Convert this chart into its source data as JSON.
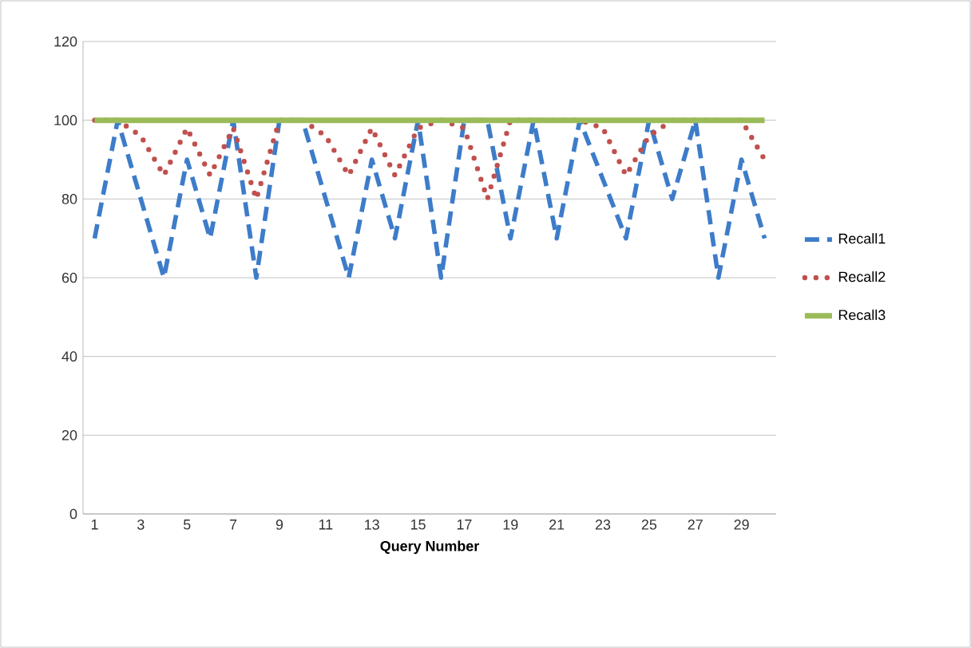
{
  "chart_data": {
    "type": "line",
    "xlabel": "**Query Number**",
    "categories": [
      "1",
      null,
      "3",
      null,
      "5",
      null,
      "7",
      null,
      "9",
      null,
      "11",
      null,
      "13",
      null,
      "15",
      null,
      "17",
      null,
      "19",
      null,
      "21",
      null,
      "23",
      null,
      "25",
      null,
      "27",
      null,
      "29",
      null
    ],
    "ylim": [
      0,
      120
    ],
    "yticks": [
      0,
      20,
      40,
      60,
      80,
      100,
      120
    ],
    "grid": "y",
    "legend": "right",
    "marker": "none",
    "series": [
      {
        "name": "Recall1",
        "color": "#3d7cc9",
        "line_style": "dashed",
        "values": [
          70,
          100,
          80,
          60,
          90,
          70,
          100,
          60,
          100,
          100,
          80,
          60,
          90,
          70,
          100,
          60,
          100,
          100,
          70,
          100,
          70,
          100,
          85,
          70,
          100,
          80,
          100,
          60,
          90,
          70
        ]
      },
      {
        "name": "Recall2",
        "color": "#c0504d",
        "line_style": "dotted",
        "values": [
          100,
          100,
          96,
          86,
          98,
          86,
          98,
          80,
          100,
          100,
          96,
          86,
          98,
          86,
          98,
          100,
          98,
          80,
          100,
          null,
          null,
          100,
          98,
          86,
          96,
          100,
          null,
          null,
          100,
          90
        ]
      },
      {
        "name": "Recall3",
        "color": "#9bbb59",
        "line_style": "solid",
        "values": [
          100,
          100,
          100,
          100,
          100,
          100,
          100,
          100,
          100,
          100,
          100,
          100,
          100,
          100,
          100,
          100,
          100,
          100,
          100,
          100,
          100,
          100,
          100,
          100,
          100,
          100,
          100,
          100,
          100,
          100
        ]
      }
    ]
  }
}
